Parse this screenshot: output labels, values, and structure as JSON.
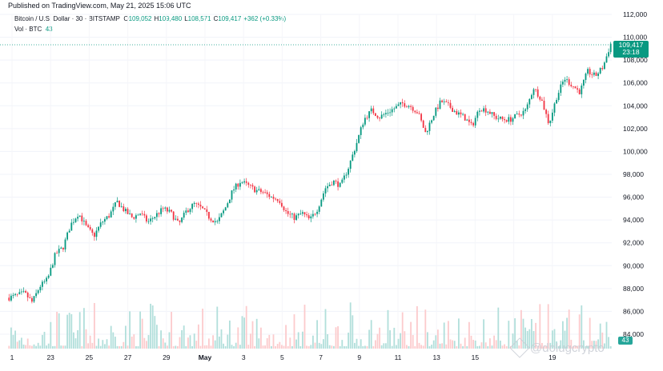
{
  "published": "Published on TradingView.com, May 21, 2025 15:06 UTC",
  "legend": {
    "symbol": "Bitcoin / U.S. Dollar · 30 · BITSTAMP",
    "o_label": "O",
    "o_value": "109,052",
    "h_label": "H",
    "h_value": "109,480",
    "l_label": "L",
    "l_value": "108,571",
    "c_label": "C",
    "c_value": "109,417",
    "change": "+362 (+0.33%)",
    "vol_label": "Vol · BTC",
    "vol_value": "43"
  },
  "price_tag": {
    "price": "109,417",
    "countdown": "23:18"
  },
  "vol_tag": "43",
  "watermark": "@dolugcrypto",
  "colors": {
    "up": "#089981",
    "down": "#f23645",
    "vol_up": "#b2dfdb",
    "vol_down": "#fccbcd",
    "grid": "#f0f3fa"
  },
  "chart_data": {
    "type": "candlestick",
    "title": "Bitcoin / U.S. Dollar · 30 · BITSTAMP",
    "y_axis": {
      "ticks": [
        "112,000",
        "110,000",
        "108,000",
        "106,000",
        "104,000",
        "102,000",
        "100,000",
        "98,000",
        "96,000",
        "94,000",
        "92,000",
        "90,000",
        "88,000",
        "86,000",
        "84,000"
      ],
      "range": [
        84000,
        112000
      ]
    },
    "x_axis": {
      "ticks": [
        "1",
        "23",
        "25",
        "27",
        "29",
        "May",
        "3",
        "5",
        "7",
        "9",
        "11",
        "13",
        "15",
        "",
        "19"
      ]
    },
    "last_price": 109417,
    "price_path": [
      [
        0,
        87200
      ],
      [
        2,
        87600
      ],
      [
        3,
        86800
      ],
      [
        4,
        88200
      ],
      [
        5,
        88800
      ],
      [
        6,
        91000
      ],
      [
        7,
        91600
      ],
      [
        8,
        93600
      ],
      [
        9,
        94600
      ],
      [
        10,
        93400
      ],
      [
        11,
        92600
      ],
      [
        12,
        93800
      ],
      [
        13,
        94400
      ],
      [
        14,
        95600
      ],
      [
        15,
        94800
      ],
      [
        16,
        94200
      ],
      [
        17,
        94600
      ],
      [
        18,
        93800
      ],
      [
        19,
        94400
      ],
      [
        20,
        95000
      ],
      [
        21,
        94600
      ],
      [
        22,
        93600
      ],
      [
        23,
        94800
      ],
      [
        24,
        95400
      ],
      [
        25,
        95000
      ],
      [
        26,
        94200
      ],
      [
        27,
        93800
      ],
      [
        28,
        95000
      ],
      [
        29,
        96600
      ],
      [
        30,
        97400
      ],
      [
        31,
        97000
      ],
      [
        32,
        96600
      ],
      [
        33,
        96400
      ],
      [
        34,
        96000
      ],
      [
        35,
        95800
      ],
      [
        36,
        94600
      ],
      [
        37,
        94200
      ],
      [
        38,
        94600
      ],
      [
        39,
        94000
      ],
      [
        40,
        95000
      ],
      [
        41,
        96800
      ],
      [
        42,
        97400
      ],
      [
        43,
        97000
      ],
      [
        44,
        98600
      ],
      [
        45,
        100600
      ],
      [
        46,
        102800
      ],
      [
        47,
        103600
      ],
      [
        48,
        103000
      ],
      [
        49,
        103400
      ],
      [
        50,
        103800
      ],
      [
        51,
        104200
      ],
      [
        52,
        104000
      ],
      [
        53,
        103400
      ],
      [
        54,
        101600
      ],
      [
        55,
        103200
      ],
      [
        56,
        104400
      ],
      [
        57,
        104000
      ],
      [
        58,
        103400
      ],
      [
        59,
        103000
      ],
      [
        60,
        102200
      ],
      [
        61,
        103800
      ],
      [
        62,
        103600
      ],
      [
        63,
        103000
      ],
      [
        64,
        102800
      ],
      [
        65,
        102800
      ],
      [
        66,
        103200
      ],
      [
        67,
        103600
      ],
      [
        68,
        105600
      ],
      [
        69,
        104600
      ],
      [
        70,
        102400
      ],
      [
        71,
        104800
      ],
      [
        72,
        106400
      ],
      [
        73,
        105800
      ],
      [
        74,
        105200
      ],
      [
        75,
        107000
      ],
      [
        76,
        106600
      ],
      [
        77,
        107400
      ],
      [
        78,
        109417
      ]
    ]
  }
}
